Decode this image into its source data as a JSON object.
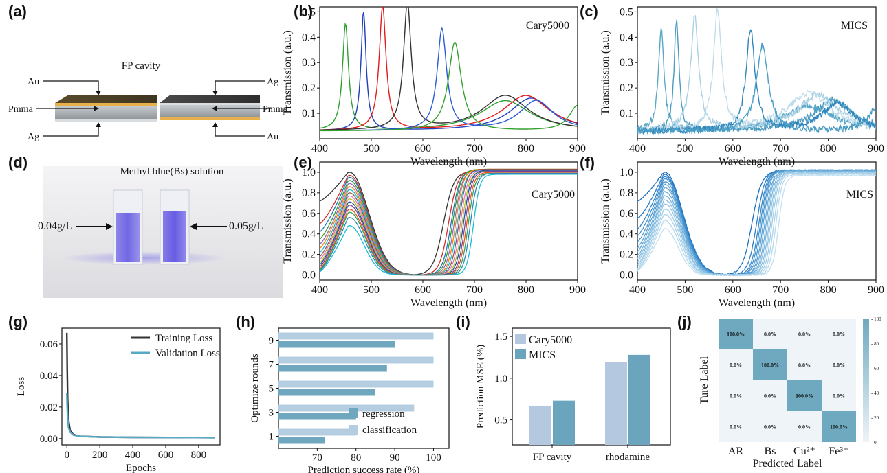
{
  "panel_labels": [
    "(a)",
    "(b)",
    "(c)",
    "(d)",
    "(e)",
    "(f)",
    "(g)",
    "(h)",
    "(i)",
    "(j)"
  ],
  "illustrations": {
    "a": {
      "title": "FP cavity",
      "labels": {
        "au_left": "Au",
        "pmma_left": "Pmma",
        "ag_left": "Ag",
        "ag_right": "Ag",
        "pmma_right": "Pmma",
        "au_right": "Au"
      }
    },
    "d": {
      "title": "Methyl blue(Bs) solution",
      "left": "0.04g/L",
      "right": "0.05g/L"
    }
  },
  "chart_data": [
    {
      "panel": "b",
      "type": "line",
      "annotation": "Cary5000",
      "xlabel": "Wavelength (nm)",
      "ylabel": "Transmission (a.u.)",
      "xlim": [
        400,
        900
      ],
      "ylim": [
        0.0,
        0.52
      ],
      "xticks": [
        400,
        500,
        600,
        700,
        800,
        900
      ],
      "yticks": [
        0.1,
        0.2,
        0.3,
        0.4,
        0.5
      ],
      "series": [
        {
          "color": "#2ca02c",
          "peak1": 450,
          "amp1": 0.42,
          "w1": 7,
          "peak2": 760,
          "amp2": 0.12,
          "w2": 60,
          "base": 0.03
        },
        {
          "color": "#1f3fbf",
          "peak1": 485,
          "amp1": 0.47,
          "w1": 6,
          "peak2": 810,
          "amp2": 0.13,
          "w2": 50,
          "base": 0.03
        },
        {
          "color": "#e31a1c",
          "peak1": 522,
          "amp1": 0.49,
          "w1": 8,
          "peak2": 800,
          "amp2": 0.14,
          "w2": 55,
          "base": 0.03
        },
        {
          "color": "#333333",
          "peak1": 570,
          "amp1": 0.5,
          "w1": 9,
          "peak2": 760,
          "amp2": 0.14,
          "w2": 55,
          "base": 0.03
        },
        {
          "color": "#2b5bd7",
          "peak1": 637,
          "amp1": 0.4,
          "w1": 11,
          "peak2": 820,
          "amp2": 0.12,
          "w2": 40,
          "base": 0.03
        },
        {
          "color": "#33a02c",
          "peak1": 662,
          "amp1": 0.35,
          "w1": 15,
          "peak2": 900,
          "amp2": 0.1,
          "w2": 20,
          "base": 0.03
        }
      ]
    },
    {
      "panel": "c",
      "type": "line",
      "annotation": "MICS",
      "xlabel": "Wavelength (nm)",
      "ylabel": "Transmission (a.u.)",
      "xlim": [
        400,
        900
      ],
      "ylim": [
        0.0,
        0.52
      ],
      "xticks": [
        400,
        500,
        600,
        700,
        800,
        900
      ],
      "yticks": [
        0.1,
        0.2,
        0.3,
        0.4,
        0.5
      ],
      "series": [
        {
          "color": "#5aa7c9",
          "peak1": 450,
          "amp1": 0.4,
          "w1": 7,
          "peak2": 760,
          "amp2": 0.1,
          "w2": 60,
          "base": 0.03
        },
        {
          "color": "#4c9cc2",
          "peak1": 482,
          "amp1": 0.44,
          "w1": 6,
          "peak2": 810,
          "amp2": 0.12,
          "w2": 50,
          "base": 0.03
        },
        {
          "color": "#a9d0e3",
          "peak1": 520,
          "amp1": 0.45,
          "w1": 10,
          "peak2": 780,
          "amp2": 0.14,
          "w2": 55,
          "base": 0.03
        },
        {
          "color": "#bcdcea",
          "peak1": 568,
          "amp1": 0.47,
          "w1": 10,
          "peak2": 760,
          "amp2": 0.15,
          "w2": 55,
          "base": 0.03
        },
        {
          "color": "#2f86bd",
          "peak1": 637,
          "amp1": 0.4,
          "w1": 11,
          "peak2": 820,
          "amp2": 0.11,
          "w2": 40,
          "base": 0.03
        },
        {
          "color": "#4a9dc4",
          "peak1": 662,
          "amp1": 0.34,
          "w1": 15,
          "peak2": 900,
          "amp2": 0.09,
          "w2": 20,
          "base": 0.03
        }
      ]
    },
    {
      "panel": "e",
      "type": "line",
      "annotation": "Cary5000",
      "xlabel": "Wavelength (nm)",
      "ylabel": "Transmission (a.u.)",
      "xlim": [
        400,
        900
      ],
      "ylim": [
        -0.05,
        1.1
      ],
      "xticks": [
        400,
        500,
        600,
        700,
        800,
        900
      ],
      "yticks": [
        0.0,
        0.2,
        0.4,
        0.6,
        0.8,
        1.0
      ],
      "series": [
        {
          "color": "#333333",
          "amp": 1.0,
          "rise": 640,
          "lw": 40,
          "start": 0.72,
          "plateau": 1.01
        },
        {
          "color": "#d62728",
          "amp": 0.97,
          "rise": 650,
          "lw": 35,
          "start": 0.5,
          "plateau": 1.02
        },
        {
          "color": "#1f77b4",
          "amp": 0.95,
          "rise": 655,
          "lw": 33,
          "start": 0.42,
          "plateau": 1.02
        },
        {
          "color": "#2ca02c",
          "amp": 0.92,
          "rise": 658,
          "lw": 32,
          "start": 0.35,
          "plateau": 1.03
        },
        {
          "color": "#9467bd",
          "amp": 0.89,
          "rise": 661,
          "lw": 31,
          "start": 0.3,
          "plateau": 1.02
        },
        {
          "color": "#ff7f0e",
          "amp": 0.86,
          "rise": 664,
          "lw": 30,
          "start": 0.26,
          "plateau": 1.03
        },
        {
          "color": "#17becf",
          "amp": 0.83,
          "rise": 667,
          "lw": 30,
          "start": 0.22,
          "plateau": 1.02
        },
        {
          "color": "#8c564b",
          "amp": 0.8,
          "rise": 670,
          "lw": 29,
          "start": 0.18,
          "plateau": 1.03
        },
        {
          "color": "#e377c2",
          "amp": 0.77,
          "rise": 673,
          "lw": 29,
          "start": 0.15,
          "plateau": 1.02
        },
        {
          "color": "#bcbd22",
          "amp": 0.74,
          "rise": 676,
          "lw": 28,
          "start": 0.12,
          "plateau": 1.01
        },
        {
          "color": "#1a55a0",
          "amp": 0.71,
          "rise": 679,
          "lw": 28,
          "start": 0.1,
          "plateau": 1.02
        },
        {
          "color": "#7f3f98",
          "amp": 0.68,
          "rise": 682,
          "lw": 27,
          "start": 0.08,
          "plateau": 1.01
        },
        {
          "color": "#e6550d",
          "amp": 0.64,
          "rise": 685,
          "lw": 27,
          "start": 0.06,
          "plateau": 1.0
        },
        {
          "color": "#31a354",
          "amp": 0.61,
          "rise": 688,
          "lw": 26,
          "start": 0.05,
          "plateau": 0.99
        },
        {
          "color": "#3182bd",
          "amp": 0.56,
          "rise": 692,
          "lw": 26,
          "start": 0.04,
          "plateau": 0.99
        },
        {
          "color": "#17becf",
          "amp": 0.48,
          "rise": 698,
          "lw": 25,
          "start": 0.03,
          "plateau": 0.98
        }
      ]
    },
    {
      "panel": "f",
      "type": "line",
      "annotation": "MICS",
      "xlabel": "Wavelength (nm)",
      "ylabel": "Transmission (a.u.)",
      "xlim": [
        400,
        900
      ],
      "ylim": [
        -0.05,
        1.1
      ],
      "xticks": [
        400,
        500,
        600,
        700,
        800,
        900
      ],
      "yticks": [
        0.0,
        0.2,
        0.4,
        0.6,
        0.8,
        1.0
      ],
      "series": [
        {
          "color": "#1f6fbf",
          "amp": 1.0,
          "rise": 640,
          "lw": 40,
          "start": 0.72,
          "plateau": 1.01
        },
        {
          "color": "#2a7cc7",
          "amp": 0.98,
          "rise": 650,
          "lw": 35,
          "start": 0.55,
          "plateau": 1.02
        },
        {
          "color": "#3385c9",
          "amp": 0.96,
          "rise": 655,
          "lw": 33,
          "start": 0.45,
          "plateau": 1.02
        },
        {
          "color": "#3f8fcd",
          "amp": 0.94,
          "rise": 658,
          "lw": 32,
          "start": 0.38,
          "plateau": 1.02
        },
        {
          "color": "#4a97d0",
          "amp": 0.91,
          "rise": 661,
          "lw": 31,
          "start": 0.32,
          "plateau": 1.02
        },
        {
          "color": "#579fd3",
          "amp": 0.88,
          "rise": 664,
          "lw": 30,
          "start": 0.27,
          "plateau": 1.02
        },
        {
          "color": "#64a8d7",
          "amp": 0.85,
          "rise": 667,
          "lw": 30,
          "start": 0.23,
          "plateau": 1.01
        },
        {
          "color": "#70afda",
          "amp": 0.81,
          "rise": 670,
          "lw": 29,
          "start": 0.19,
          "plateau": 1.01
        },
        {
          "color": "#7db7dd",
          "amp": 0.77,
          "rise": 673,
          "lw": 29,
          "start": 0.16,
          "plateau": 1.01
        },
        {
          "color": "#89bfe0",
          "amp": 0.73,
          "rise": 676,
          "lw": 28,
          "start": 0.13,
          "plateau": 1.0
        },
        {
          "color": "#95c6e4",
          "amp": 0.69,
          "rise": 679,
          "lw": 28,
          "start": 0.1,
          "plateau": 1.0
        },
        {
          "color": "#a1cde7",
          "amp": 0.64,
          "rise": 682,
          "lw": 27,
          "start": 0.08,
          "plateau": 0.99
        },
        {
          "color": "#acd3ea",
          "amp": 0.59,
          "rise": 686,
          "lw": 27,
          "start": 0.06,
          "plateau": 0.99
        },
        {
          "color": "#b7d9ed",
          "amp": 0.53,
          "rise": 690,
          "lw": 26,
          "start": 0.05,
          "plateau": 0.98
        },
        {
          "color": "#c2dfef",
          "amp": 0.45,
          "rise": 696,
          "lw": 26,
          "start": 0.04,
          "plateau": 0.97
        }
      ]
    },
    {
      "panel": "g",
      "type": "line",
      "xlabel": "Epochs",
      "ylabel": "Loss",
      "xlim": [
        -30,
        930
      ],
      "ylim": [
        -0.004,
        0.07
      ],
      "xticks": [
        0,
        200,
        400,
        600,
        800
      ],
      "yticks": [
        0.0,
        0.02,
        0.04,
        0.06
      ],
      "legend": "top-right",
      "series": [
        {
          "name": "Training Loss",
          "color": "#333333",
          "x": [
            0,
            2,
            5,
            10,
            20,
            40,
            80,
            200,
            400,
            600,
            900
          ],
          "y": [
            0.067,
            0.045,
            0.025,
            0.012,
            0.005,
            0.0025,
            0.0015,
            0.001,
            0.0008,
            0.0007,
            0.0006
          ]
        },
        {
          "name": "Validation Loss",
          "color": "#5aa9c4",
          "x": [
            0,
            2,
            5,
            10,
            20,
            40,
            80,
            200,
            400,
            600,
            900
          ],
          "y": [
            0.029,
            0.02,
            0.012,
            0.007,
            0.004,
            0.0022,
            0.0014,
            0.001,
            0.0008,
            0.0007,
            0.0006
          ]
        }
      ]
    },
    {
      "panel": "h",
      "type": "bar",
      "orientation": "horizontal",
      "xlabel": "Prediction success rate (%)",
      "ylabel": "Optimize rounds",
      "xlim": [
        60,
        104
      ],
      "xticks": [
        70,
        80,
        90,
        100
      ],
      "categories": [
        "1",
        "3",
        "5",
        "7",
        "9"
      ],
      "legend": "bottom-right",
      "series": [
        {
          "name": "regression",
          "color": "#6fa8be",
          "values": [
            72,
            80,
            85,
            88,
            90
          ]
        },
        {
          "name": "classification",
          "color": "#b4cde0",
          "values": [
            80,
            95,
            100,
            100,
            100
          ]
        }
      ]
    },
    {
      "panel": "i",
      "type": "bar",
      "ylabel": "Prediction MSE (%)",
      "ylim": [
        0.2,
        1.6
      ],
      "yticks": [
        0.5,
        1.0,
        1.5
      ],
      "categories": [
        "FP cavity",
        "rhodamine"
      ],
      "legend": "top-left",
      "series": [
        {
          "name": "Cary5000",
          "color": "#b4c9df",
          "values": [
            0.67,
            1.19
          ]
        },
        {
          "name": "MICS",
          "color": "#6aa5bd",
          "values": [
            0.73,
            1.28
          ]
        }
      ]
    },
    {
      "panel": "j",
      "type": "heatmap",
      "xlabel": "Predicted Label",
      "ylabel": "Ture Label",
      "x_categories": [
        "AR",
        "Bs",
        "Cu²⁺",
        "Fe³⁺"
      ],
      "y_categories": [
        "AR",
        "Bs",
        "Cu²⁺",
        "Fe³⁺"
      ],
      "values": [
        [
          100,
          0,
          0,
          0
        ],
        [
          0,
          100,
          0,
          0
        ],
        [
          0,
          0,
          100,
          0
        ],
        [
          0,
          0,
          0,
          100
        ]
      ],
      "cell_labels": [
        [
          "100.0%",
          "0.0%",
          "0.0%",
          "0.0%"
        ],
        [
          "0.0%",
          "100.0%",
          "0.0%",
          "0.0%"
        ],
        [
          "0.0%",
          "0.0%",
          "100.0%",
          "0.0%"
        ],
        [
          "0.0%",
          "0.0%",
          "0.0%",
          "100.0%"
        ]
      ],
      "colorbar_ticks": [
        "100",
        "80",
        "60",
        "40",
        "20",
        "0"
      ],
      "colors": {
        "high": "#6ea9bf",
        "low": "#eef4f8"
      }
    }
  ]
}
